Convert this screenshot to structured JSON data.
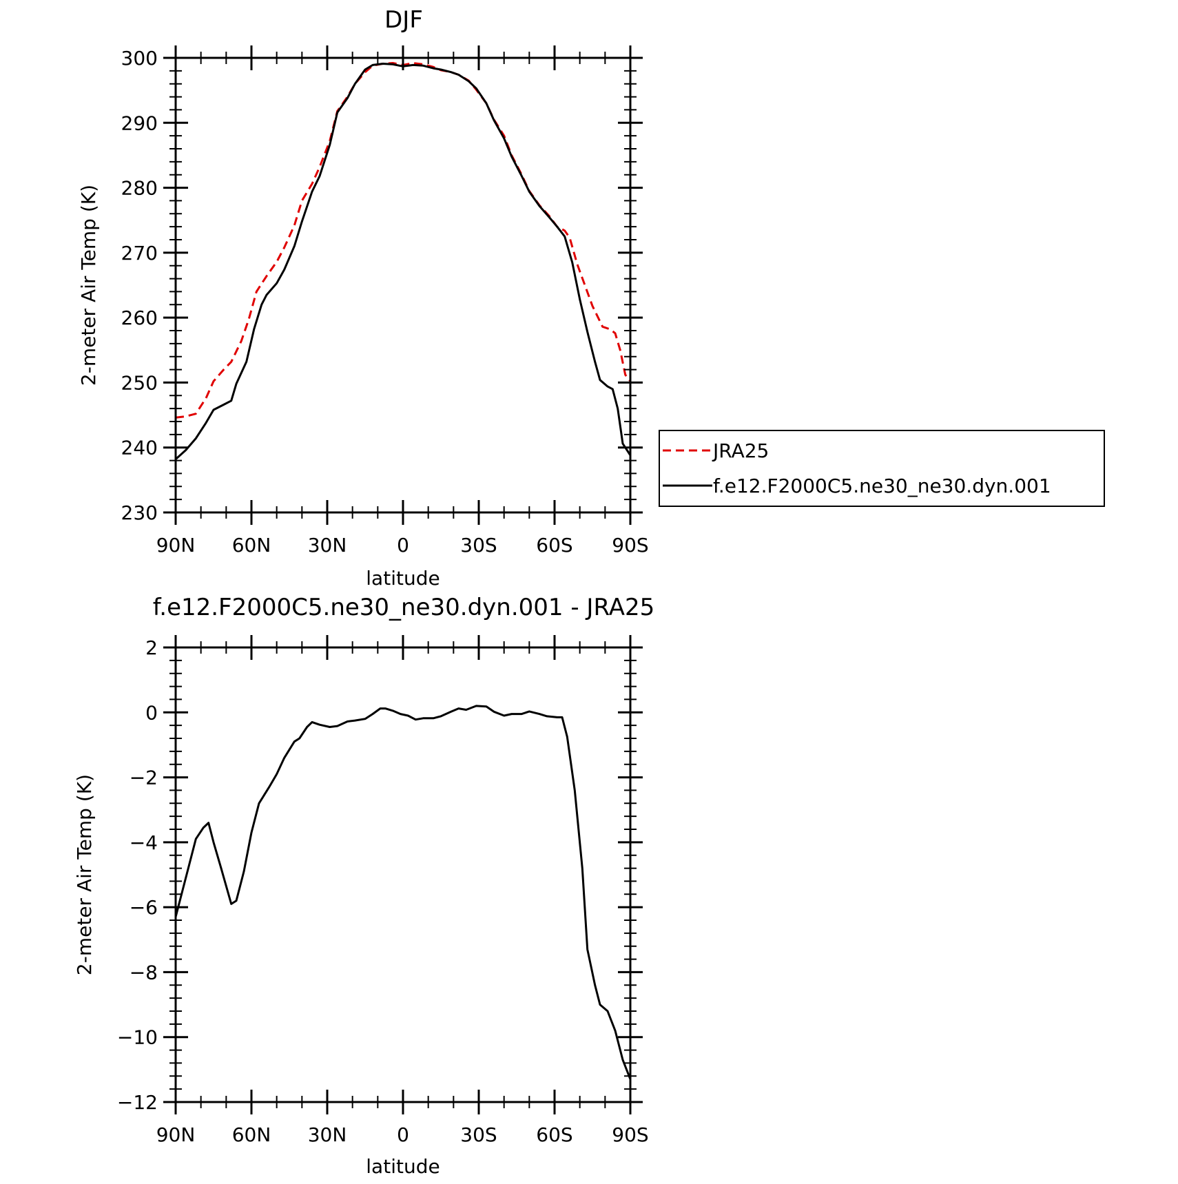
{
  "chart_data": [
    {
      "type": "line",
      "title": "DJF",
      "xlabel": "latitude",
      "ylabel": "2-meter Air Temp (K)",
      "xlim": [
        90,
        -90
      ],
      "ylim": [
        230,
        300
      ],
      "x_tick_values": [
        90,
        60,
        30,
        0,
        -30,
        -60,
        -90
      ],
      "x_tick_labels": [
        "90N",
        "60N",
        "30N",
        "0",
        "30S",
        "60S",
        "90S"
      ],
      "y_ticks": [
        300,
        290,
        280,
        270,
        260,
        250,
        240,
        230
      ],
      "legend_position": "right",
      "series": [
        {
          "name": "JRA25",
          "color": "#e00000",
          "dash": "dashed",
          "points": [
            [
              90,
              244.6
            ],
            [
              86,
              244.8
            ],
            [
              82,
              245.2
            ],
            [
              78,
              247.6
            ],
            [
              75,
              250.2
            ],
            [
              71,
              252.0
            ],
            [
              68,
              253.2
            ],
            [
              64,
              256.4
            ],
            [
              61,
              259.8
            ],
            [
              58,
              264.0
            ],
            [
              54,
              266.4
            ],
            [
              50,
              268.6
            ],
            [
              47,
              270.8
            ],
            [
              43,
              274.2
            ],
            [
              40,
              278.0
            ],
            [
              36,
              280.6
            ],
            [
              33,
              283.2
            ],
            [
              29,
              287.2
            ],
            [
              26,
              291.8
            ],
            [
              22,
              294.0
            ],
            [
              19,
              296.0
            ],
            [
              15,
              297.8
            ],
            [
              12,
              298.8
            ],
            [
              8,
              299.1
            ],
            [
              4,
              299.2
            ],
            [
              0,
              298.9
            ],
            [
              -4,
              299.2
            ],
            [
              -8,
              299.0
            ],
            [
              -12,
              298.6
            ],
            [
              -15,
              298.1
            ],
            [
              -19,
              297.8
            ],
            [
              -22,
              297.4
            ],
            [
              -26,
              296.5
            ],
            [
              -29,
              295.1
            ],
            [
              -33,
              293.0
            ],
            [
              -36,
              290.5
            ],
            [
              -40,
              288.0
            ],
            [
              -43,
              285.0
            ],
            [
              -47,
              282.0
            ],
            [
              -50,
              279.5
            ],
            [
              -54,
              277.3
            ],
            [
              -58,
              275.6
            ],
            [
              -61,
              274.0
            ],
            [
              -64,
              273.4
            ],
            [
              -66,
              272.3
            ],
            [
              -69,
              268.2
            ],
            [
              -72,
              265.0
            ],
            [
              -75,
              261.8
            ],
            [
              -79,
              258.6
            ],
            [
              -82,
              258.2
            ],
            [
              -84,
              257.6
            ],
            [
              -86,
              255.0
            ],
            [
              -88,
              251.2
            ],
            [
              -90,
              250.2
            ]
          ]
        },
        {
          "name": "f.e12.F2000C5.ne30_ne30.dyn.001",
          "color": "#000000",
          "dash": "solid",
          "points": [
            [
              90,
              238.2
            ],
            [
              86,
              239.6
            ],
            [
              82,
              241.4
            ],
            [
              78,
              243.8
            ],
            [
              75,
              245.8
            ],
            [
              71,
              246.6
            ],
            [
              68,
              247.2
            ],
            [
              66,
              249.8
            ],
            [
              62,
              253.2
            ],
            [
              59,
              258.2
            ],
            [
              56,
              262.0
            ],
            [
              54,
              263.5
            ],
            [
              50,
              265.3
            ],
            [
              47,
              267.4
            ],
            [
              43,
              271.0
            ],
            [
              40,
              274.8
            ],
            [
              36,
              279.4
            ],
            [
              33,
              281.8
            ],
            [
              29,
              286.6
            ],
            [
              26,
              291.6
            ],
            [
              22,
              293.8
            ],
            [
              19,
              296.0
            ],
            [
              15,
              298.2
            ],
            [
              12,
              298.9
            ],
            [
              8,
              299.1
            ],
            [
              4,
              299.0
            ],
            [
              0,
              298.7
            ],
            [
              -4,
              298.9
            ],
            [
              -8,
              298.8
            ],
            [
              -12,
              298.4
            ],
            [
              -15,
              298.2
            ],
            [
              -19,
              297.8
            ],
            [
              -22,
              297.4
            ],
            [
              -26,
              296.4
            ],
            [
              -29,
              295.3
            ],
            [
              -33,
              293.0
            ],
            [
              -36,
              290.4
            ],
            [
              -40,
              287.6
            ],
            [
              -43,
              284.8
            ],
            [
              -47,
              281.8
            ],
            [
              -50,
              279.4
            ],
            [
              -54,
              277.2
            ],
            [
              -58,
              275.4
            ],
            [
              -61,
              274.0
            ],
            [
              -64,
              272.5
            ],
            [
              -67,
              268.5
            ],
            [
              -70,
              262.8
            ],
            [
              -73,
              257.8
            ],
            [
              -76,
              253.2
            ],
            [
              -78,
              250.4
            ],
            [
              -81,
              249.4
            ],
            [
              -83,
              249.0
            ],
            [
              -85,
              246.0
            ],
            [
              -87,
              240.6
            ],
            [
              -90,
              238.8
            ]
          ]
        }
      ]
    },
    {
      "type": "line",
      "title": "f.e12.F2000C5.ne30_ne30.dyn.001 - JRA25",
      "xlabel": "latitude",
      "ylabel": "2-meter Air Temp (K)",
      "xlim": [
        90,
        -90
      ],
      "ylim": [
        -12,
        2
      ],
      "x_tick_values": [
        90,
        60,
        30,
        0,
        -30,
        -60,
        -90
      ],
      "x_tick_labels": [
        "90N",
        "60N",
        "30N",
        "0",
        "30S",
        "60S",
        "90S"
      ],
      "y_ticks": [
        2,
        0,
        -2,
        -4,
        -6,
        -8,
        -10,
        -12
      ],
      "y_tick_labels": [
        "2",
        "0",
        "−2",
        "−4",
        "−6",
        "−8",
        "−10",
        "−12"
      ],
      "series": [
        {
          "color": "#000000",
          "dash": "solid",
          "points": [
            [
              90,
              -6.3
            ],
            [
              85,
              -4.8
            ],
            [
              82,
              -3.9
            ],
            [
              79,
              -3.55
            ],
            [
              77,
              -3.4
            ],
            [
              75,
              -4.0
            ],
            [
              72,
              -4.8
            ],
            [
              68,
              -5.9
            ],
            [
              66,
              -5.8
            ],
            [
              63,
              -4.9
            ],
            [
              60,
              -3.7
            ],
            [
              57,
              -2.8
            ],
            [
              53,
              -2.3
            ],
            [
              50,
              -1.9
            ],
            [
              47,
              -1.4
            ],
            [
              43,
              -0.9
            ],
            [
              41,
              -0.8
            ],
            [
              38,
              -0.45
            ],
            [
              36,
              -0.3
            ],
            [
              33,
              -0.38
            ],
            [
              29,
              -0.45
            ],
            [
              26,
              -0.42
            ],
            [
              22,
              -0.28
            ],
            [
              19,
              -0.25
            ],
            [
              15,
              -0.2
            ],
            [
              12,
              -0.05
            ],
            [
              9,
              0.12
            ],
            [
              7,
              0.12
            ],
            [
              4,
              0.05
            ],
            [
              1,
              -0.05
            ],
            [
              -2,
              -0.1
            ],
            [
              -5,
              -0.22
            ],
            [
              -8,
              -0.18
            ],
            [
              -12,
              -0.18
            ],
            [
              -15,
              -0.12
            ],
            [
              -19,
              0.02
            ],
            [
              -22,
              0.12
            ],
            [
              -25,
              0.08
            ],
            [
              -29,
              0.2
            ],
            [
              -33,
              0.18
            ],
            [
              -36,
              0.02
            ],
            [
              -40,
              -0.1
            ],
            [
              -43,
              -0.05
            ],
            [
              -47,
              -0.05
            ],
            [
              -50,
              0.03
            ],
            [
              -54,
              -0.05
            ],
            [
              -57,
              -0.12
            ],
            [
              -61,
              -0.15
            ],
            [
              -63,
              -0.15
            ],
            [
              -65,
              -0.75
            ],
            [
              -68,
              -2.4
            ],
            [
              -71,
              -4.8
            ],
            [
              -73,
              -7.3
            ],
            [
              -76,
              -8.4
            ],
            [
              -78,
              -9.0
            ],
            [
              -81,
              -9.2
            ],
            [
              -84,
              -9.8
            ],
            [
              -87,
              -10.7
            ],
            [
              -90,
              -11.3
            ]
          ]
        }
      ]
    }
  ]
}
